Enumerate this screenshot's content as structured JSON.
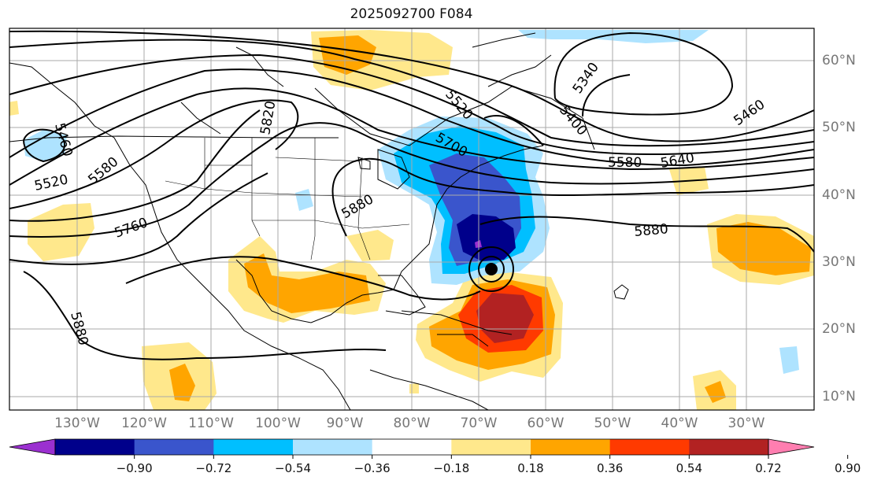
{
  "title": "2025092700 F084",
  "lat_labels": [
    "60°N",
    "50°N",
    "40°N",
    "30°N",
    "20°N",
    "10°N"
  ],
  "lon_labels": [
    "130°W",
    "120°W",
    "110°W",
    "100°W",
    "90°W",
    "80°W",
    "70°W",
    "60°W",
    "50°W",
    "40°W",
    "30°W"
  ],
  "contour_labels": [
    "5460",
    "5520",
    "5580",
    "5820",
    "5760",
    "5880",
    "5700",
    "5520",
    "5340",
    "5400",
    "5580",
    "5640",
    "5460",
    "5880",
    "5880"
  ],
  "colorbar": {
    "colors": [
      "#9b30d0",
      "#00008b",
      "#3a55cc",
      "#00bfff",
      "#aee3ff",
      "#ffffff",
      "#ffe88c",
      "#ffa500",
      "#ff3a00",
      "#b22222",
      "#ff7eb0"
    ],
    "ticks": [
      "−0.90",
      "−0.72",
      "−0.54",
      "−0.36",
      "−0.18",
      "0.18",
      "0.36",
      "0.54",
      "0.72",
      "0.90"
    ]
  },
  "marker": "storm-center"
}
